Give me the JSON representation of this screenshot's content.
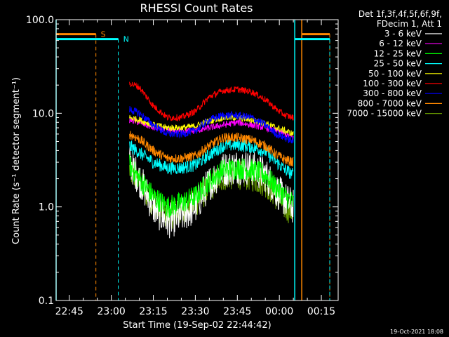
{
  "chart_data": {
    "type": "line",
    "title": "RHESSI Count Rates",
    "xlabel": "Start Time (19-Sep-02 22:44:42)",
    "ylabel": "Count Rate (s⁻¹ detector segment⁻¹)",
    "y_scale": "log",
    "ylim": [
      0.1,
      100
    ],
    "xlim_minutes": [
      -4.7,
      96
    ],
    "x_ticks": [
      {
        "t": 0,
        "label": "22:45"
      },
      {
        "t": 15,
        "label": "23:00"
      },
      {
        "t": 30,
        "label": "23:15"
      },
      {
        "t": 45,
        "label": "23:30"
      },
      {
        "t": 60,
        "label": "23:45"
      },
      {
        "t": 75,
        "label": "00:00"
      },
      {
        "t": 90,
        "label": "00:15"
      }
    ],
    "y_ticks": [
      {
        "v": 0.1,
        "label": "0.1"
      },
      {
        "v": 1.0,
        "label": "1.0"
      },
      {
        "v": 10.0,
        "label": "10.0"
      },
      {
        "v": 100.0,
        "label": "100.0"
      }
    ],
    "legend_header": [
      "Det 1f,3f,4f,5f,6f,9f,",
      "FDecim 1, Att 1"
    ],
    "data_start": 21.5,
    "data_end": 80.0,
    "x_time_points_minutes": [
      21.5,
      25,
      30,
      35,
      40,
      45,
      50,
      55,
      60,
      65,
      70,
      74,
      77,
      80
    ],
    "series": [
      {
        "name": "3 - 6 keV",
        "color": "#ffffff",
        "values": [
          3.0,
          2.0,
          1.0,
          0.7,
          0.8,
          1.0,
          1.8,
          2.5,
          2.7,
          2.6,
          2.2,
          1.5,
          1.2,
          1.0
        ]
      },
      {
        "name": "6 - 12 keV",
        "color": "#ff00ff",
        "values": [
          8.5,
          8.0,
          7.0,
          6.5,
          6.5,
          6.5,
          7.0,
          7.5,
          8.0,
          7.5,
          7.0,
          6.5,
          6.0,
          5.5
        ]
      },
      {
        "name": "12 - 25 keV",
        "color": "#00ff00",
        "values": [
          2.8,
          2.0,
          1.3,
          1.0,
          1.1,
          1.3,
          1.9,
          2.5,
          2.6,
          2.5,
          2.2,
          1.6,
          1.3,
          1.1
        ]
      },
      {
        "name": "25 - 50 keV",
        "color": "#00ffff",
        "values": [
          4.5,
          3.8,
          3.0,
          2.6,
          2.6,
          2.8,
          3.6,
          4.5,
          4.6,
          4.4,
          3.9,
          3.0,
          2.5,
          2.2
        ]
      },
      {
        "name": "50 - 100 keV",
        "color": "#ffff00",
        "values": [
          9.0,
          8.5,
          7.5,
          7.0,
          7.0,
          7.3,
          8.3,
          9.0,
          9.0,
          8.5,
          7.8,
          7.0,
          6.5,
          6.0
        ]
      },
      {
        "name": "100 - 300 keV",
        "color": "#ff0000",
        "values": [
          21.0,
          19.0,
          12.0,
          9.0,
          9.0,
          10.5,
          15.0,
          17.5,
          18.0,
          17.0,
          14.0,
          11.0,
          9.5,
          9.0
        ]
      },
      {
        "name": "300 - 800 keV",
        "color": "#0000ff",
        "values": [
          11.0,
          10.0,
          7.5,
          6.0,
          6.0,
          6.5,
          8.5,
          9.5,
          9.5,
          9.0,
          7.5,
          6.0,
          5.5,
          5.0
        ]
      },
      {
        "name": "800 - 7000 keV",
        "color": "#ff8800",
        "values": [
          6.0,
          5.3,
          4.0,
          3.3,
          3.3,
          3.5,
          4.5,
          5.5,
          5.5,
          5.2,
          4.5,
          3.6,
          3.2,
          3.0
        ]
      },
      {
        "name": "7000 - 15000 keV",
        "color": "#669900",
        "values": [
          2.5,
          1.8,
          1.1,
          0.8,
          0.9,
          1.1,
          1.6,
          2.1,
          2.2,
          2.1,
          1.8,
          1.3,
          1.0,
          0.9
        ]
      }
    ],
    "markers": [
      {
        "name": "S",
        "color": "#ff8800",
        "t_start": -4.7,
        "t_end": 9.5,
        "level": 70,
        "dash_t": 9.5
      },
      {
        "name": "N",
        "color": "#00ffff",
        "t_start": -4.7,
        "t_end": 17.5,
        "level": 62,
        "dash_t": 17.5
      },
      {
        "color": "#ff8800",
        "t_start": 83.0,
        "t_end": 93.0,
        "level": 70,
        "dash_t": 93.0
      },
      {
        "color": "#00ffff",
        "t_start": 80.5,
        "t_end": 93.0,
        "level": 62,
        "dash_t": 93.0
      }
    ],
    "vertical_lines": [
      {
        "t": -4.7,
        "color": "#00ffff",
        "style": "solid"
      },
      {
        "t": 80.5,
        "color": "#00ffff",
        "style": "solid"
      },
      {
        "t": 83.0,
        "color": "#ff8800",
        "style": "solid"
      }
    ]
  },
  "footer_stamp": "19-Oct-2021 18:08",
  "colors": {
    "background": "#000000",
    "axis": "#ffffff"
  }
}
